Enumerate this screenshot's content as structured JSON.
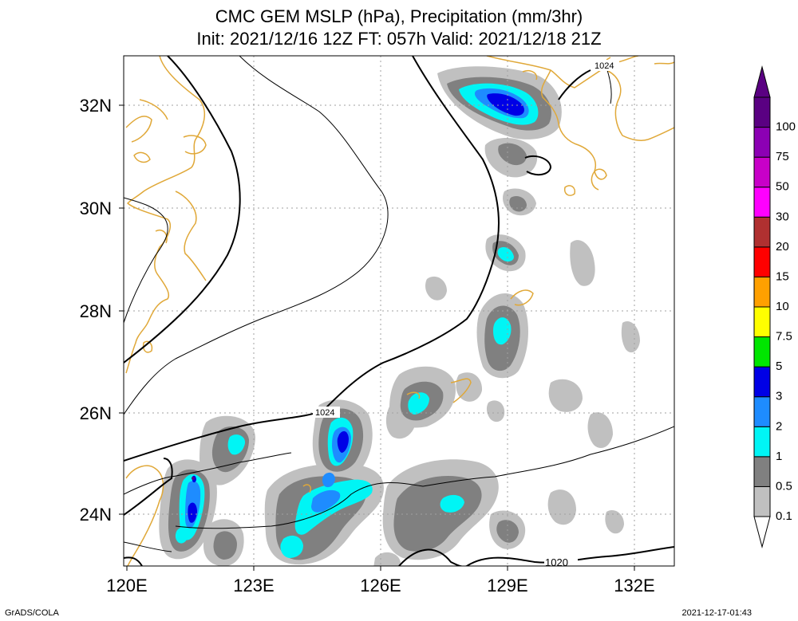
{
  "title_line1": "CMC GEM MSLP (hPa), Precipitation (mm/3hr)",
  "title_line2": "Init: 2021/12/16 12Z  FT: 057h  Valid: 2021/12/18 21Z",
  "map": {
    "lon_range": [
      120,
      133
    ],
    "lat_range": [
      23,
      33
    ],
    "x_ticks": [
      "120E",
      "123E",
      "126E",
      "129E",
      "132E"
    ],
    "y_ticks": [
      "24N",
      "26N",
      "28N",
      "30N",
      "32N"
    ],
    "gridlines": true,
    "coastline_color": "#e0a838",
    "isobar_labels": [
      "1024",
      "1024",
      "1020"
    ]
  },
  "colorbar": {
    "labels": [
      "0.1",
      "0.5",
      "1",
      "2",
      "3",
      "5",
      "7.5",
      "10",
      "15",
      "20",
      "30",
      "50",
      "75",
      "100"
    ],
    "colors": [
      "#c0c0c0",
      "#808080",
      "#00f5f5",
      "#1e8cff",
      "#0000e6",
      "#00e600",
      "#ffff00",
      "#ffa000",
      "#ff0000",
      "#b03030",
      "#ff00ff",
      "#c800c8",
      "#8c00b4",
      "#5a0082"
    ]
  },
  "footer_left": "GrADS/COLA",
  "footer_right": "2021-12-17-01:43"
}
